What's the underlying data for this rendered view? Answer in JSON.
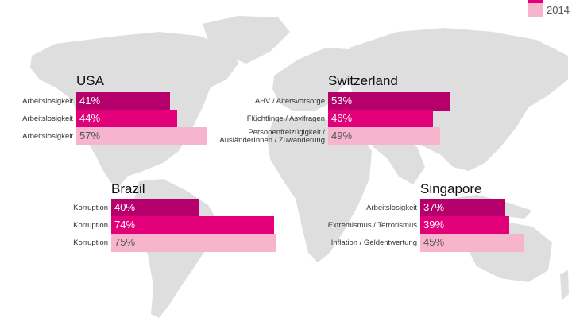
{
  "colors": {
    "y1": "#b5006b",
    "y2": "#e2007a",
    "y3": "#f7b5cd",
    "map": "#dedede"
  },
  "legend": {
    "visible_label": "2014"
  },
  "chart_data": {
    "type": "bar",
    "orientation": "horizontal",
    "value_unit": "%",
    "xlim": [
      0,
      100
    ],
    "grid": false,
    "legend_position": "top-right",
    "panels": [
      {
        "country": "USA",
        "rows": [
          {
            "category": "Arbeitslosigkeit",
            "value": 41,
            "label": "41%",
            "series": 0
          },
          {
            "category": "Arbeitslosigkeit",
            "value": 44,
            "label": "44%",
            "series": 1
          },
          {
            "category": "Arbeitslosigkeit",
            "value": 57,
            "label": "57%",
            "series": 2
          }
        ]
      },
      {
        "country": "Switzerland",
        "rows": [
          {
            "category": "AHV / Altersvorsorge",
            "value": 53,
            "label": "53%",
            "series": 0
          },
          {
            "category": "Flüchtlinge / Asylfragen",
            "value": 46,
            "label": "46%",
            "series": 1
          },
          {
            "category": "Personenfreizügigkeit / AusländerInnen / Zuwanderung",
            "value": 49,
            "label": "49%",
            "series": 2
          }
        ]
      },
      {
        "country": "Brazil",
        "rows": [
          {
            "category": "Korruption",
            "value": 40,
            "label": "40%",
            "series": 0
          },
          {
            "category": "Korruption",
            "value": 74,
            "label": "74%",
            "series": 1
          },
          {
            "category": "Korruption",
            "value": 75,
            "label": "75%",
            "series": 2
          }
        ]
      },
      {
        "country": "Singapore",
        "rows": [
          {
            "category": "Arbeitslosigkeit",
            "value": 37,
            "label": "37%",
            "series": 0
          },
          {
            "category": "Extremismus / Terrorismus",
            "value": 39,
            "label": "39%",
            "series": 1
          },
          {
            "category": "Inflation / Geldentwertung",
            "value": 45,
            "label": "45%",
            "series": 2
          }
        ]
      }
    ]
  }
}
